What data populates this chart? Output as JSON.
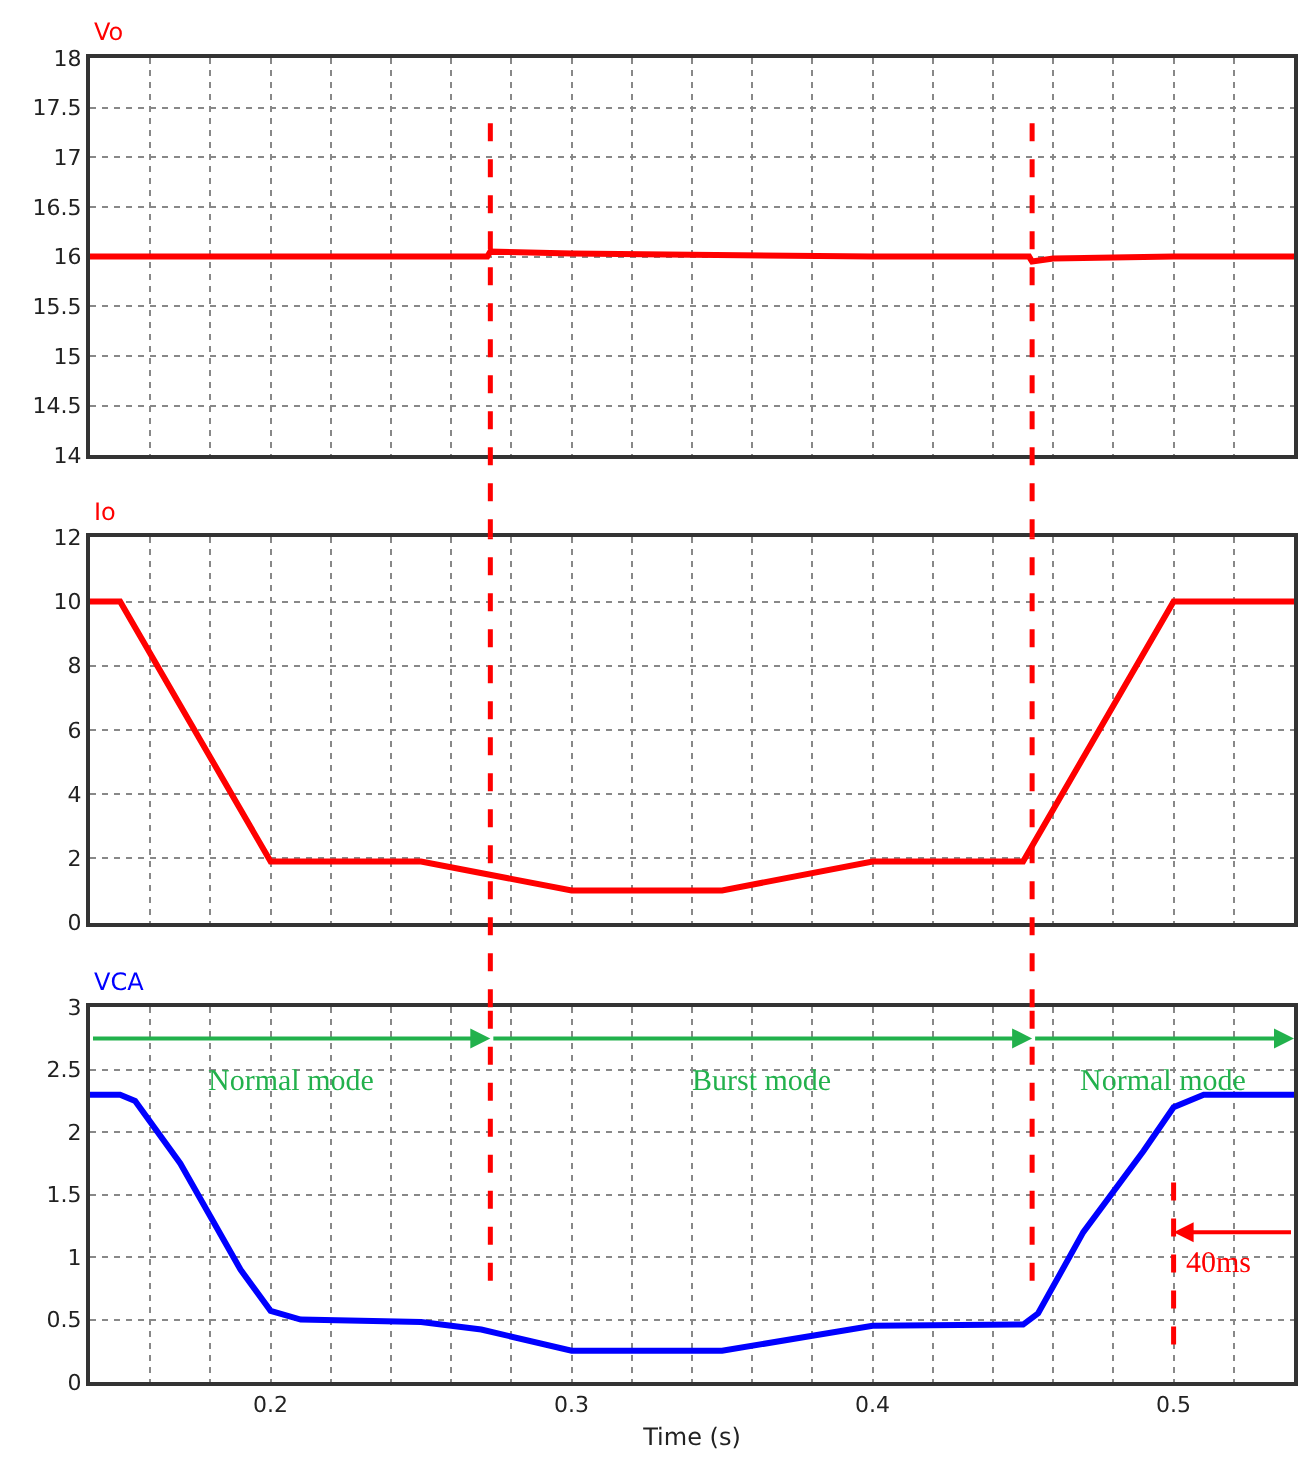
{
  "chart_data": [
    {
      "type": "line",
      "title": "Vo",
      "x": [
        0.14,
        0.2,
        0.25,
        0.272,
        0.273,
        0.3,
        0.4,
        0.452,
        0.453,
        0.46,
        0.5,
        0.54
      ],
      "series": [
        {
          "color": "#ff0000",
          "values": [
            16,
            16,
            16,
            16,
            16.05,
            16.03,
            16,
            16,
            15.95,
            15.98,
            16,
            16
          ]
        }
      ],
      "xlim": [
        0.14,
        0.54
      ],
      "xticks": [
        {
          "value": 0.16,
          "label": null
        },
        {
          "value": 0.18,
          "label": null
        },
        {
          "value": 0.2,
          "label": null
        },
        {
          "value": 0.22,
          "label": null
        },
        {
          "value": 0.24,
          "label": null
        },
        {
          "value": 0.26,
          "label": null
        },
        {
          "value": 0.28,
          "label": null
        },
        {
          "value": 0.3,
          "label": null
        },
        {
          "value": 0.32,
          "label": null
        },
        {
          "value": 0.34,
          "label": null
        },
        {
          "value": 0.36,
          "label": null
        },
        {
          "value": 0.38,
          "label": null
        },
        {
          "value": 0.4,
          "label": null
        },
        {
          "value": 0.42,
          "label": null
        },
        {
          "value": 0.44,
          "label": null
        },
        {
          "value": 0.46,
          "label": null
        },
        {
          "value": 0.48,
          "label": null
        },
        {
          "value": 0.5,
          "label": null
        },
        {
          "value": 0.52,
          "label": null
        }
      ],
      "ylim": [
        14,
        18
      ],
      "yticks": [
        14,
        14.5,
        15,
        15.5,
        16,
        16.5,
        17,
        17.5,
        18
      ],
      "grid": true,
      "tick_labels": "y",
      "line_style": "solid",
      "ref_lines": [
        {
          "axis": "x",
          "value": 0.273,
          "color": "#ff0000",
          "line_style": "dashed"
        },
        {
          "axis": "x",
          "value": 0.453,
          "color": "#ff0000",
          "line_style": "dashed"
        }
      ]
    },
    {
      "type": "line",
      "title": "Io",
      "x": [
        0.14,
        0.15,
        0.2,
        0.25,
        0.3,
        0.35,
        0.4,
        0.45,
        0.5,
        0.54
      ],
      "series": [
        {
          "color": "#ff0000",
          "values": [
            10,
            10,
            1.9,
            1.9,
            1,
            1,
            1.9,
            1.9,
            10,
            10
          ]
        }
      ],
      "xlim": [
        0.14,
        0.54
      ],
      "xticks": [
        {
          "value": 0.16,
          "label": null
        },
        {
          "value": 0.18,
          "label": null
        },
        {
          "value": 0.2,
          "label": null
        },
        {
          "value": 0.22,
          "label": null
        },
        {
          "value": 0.24,
          "label": null
        },
        {
          "value": 0.26,
          "label": null
        },
        {
          "value": 0.28,
          "label": null
        },
        {
          "value": 0.3,
          "label": null
        },
        {
          "value": 0.32,
          "label": null
        },
        {
          "value": 0.34,
          "label": null
        },
        {
          "value": 0.36,
          "label": null
        },
        {
          "value": 0.38,
          "label": null
        },
        {
          "value": 0.4,
          "label": null
        },
        {
          "value": 0.42,
          "label": null
        },
        {
          "value": 0.44,
          "label": null
        },
        {
          "value": 0.46,
          "label": null
        },
        {
          "value": 0.48,
          "label": null
        },
        {
          "value": 0.5,
          "label": null
        },
        {
          "value": 0.52,
          "label": null
        }
      ],
      "ylim": [
        0,
        12
      ],
      "yticks": [
        0,
        2,
        4,
        6,
        8,
        10,
        12
      ],
      "grid": true,
      "tick_labels": "y",
      "line_style": "solid",
      "ref_lines": [
        {
          "axis": "x",
          "value": 0.273,
          "color": "#ff0000",
          "line_style": "dashed"
        },
        {
          "axis": "x",
          "value": 0.453,
          "color": "#ff0000",
          "line_style": "dashed"
        }
      ]
    },
    {
      "type": "line",
      "title": "VCA",
      "xlabel": "Time (s)",
      "x": [
        0.14,
        0.15,
        0.155,
        0.17,
        0.19,
        0.2,
        0.21,
        0.25,
        0.27,
        0.3,
        0.35,
        0.38,
        0.4,
        0.45,
        0.455,
        0.47,
        0.49,
        0.5,
        0.51,
        0.54
      ],
      "series": [
        {
          "color": "#0000ff",
          "values": [
            2.3,
            2.3,
            2.25,
            1.75,
            0.9,
            0.57,
            0.5,
            0.48,
            0.42,
            0.25,
            0.25,
            0.37,
            0.45,
            0.46,
            0.55,
            1.2,
            1.85,
            2.2,
            2.3,
            2.3
          ]
        }
      ],
      "xlim": [
        0.14,
        0.54
      ],
      "xticks": [
        {
          "value": 0.16,
          "label": null
        },
        {
          "value": 0.18,
          "label": null
        },
        {
          "value": 0.2,
          "label": "0.2"
        },
        {
          "value": 0.22,
          "label": null
        },
        {
          "value": 0.24,
          "label": null
        },
        {
          "value": 0.26,
          "label": null
        },
        {
          "value": 0.28,
          "label": null
        },
        {
          "value": 0.3,
          "label": "0.3"
        },
        {
          "value": 0.32,
          "label": null
        },
        {
          "value": 0.34,
          "label": null
        },
        {
          "value": 0.36,
          "label": null
        },
        {
          "value": 0.38,
          "label": null
        },
        {
          "value": 0.4,
          "label": "0.4"
        },
        {
          "value": 0.42,
          "label": null
        },
        {
          "value": 0.44,
          "label": null
        },
        {
          "value": 0.46,
          "label": null
        },
        {
          "value": 0.48,
          "label": null
        },
        {
          "value": 0.5,
          "label": "0.5"
        },
        {
          "value": 0.52,
          "label": null
        }
      ],
      "ylim": [
        0,
        3
      ],
      "yticks": [
        0,
        0.5,
        1,
        1.5,
        2,
        2.5,
        3
      ],
      "grid": true,
      "line_style": "solid",
      "ref_lines": [
        {
          "axis": "x",
          "value": 0.273,
          "color": "#ff0000",
          "line_style": "dashed"
        },
        {
          "axis": "x",
          "value": 0.453,
          "color": "#ff0000",
          "line_style": "dashed"
        },
        {
          "axis": "x",
          "value": 0.5,
          "color": "#ff0000",
          "line_style": "dashed"
        }
      ],
      "annotations": [
        "Normal mode",
        "Burst mode",
        "Normal mode",
        {
          "text": "40ms",
          "x": 0.5,
          "y": 1.2
        }
      ]
    }
  ]
}
